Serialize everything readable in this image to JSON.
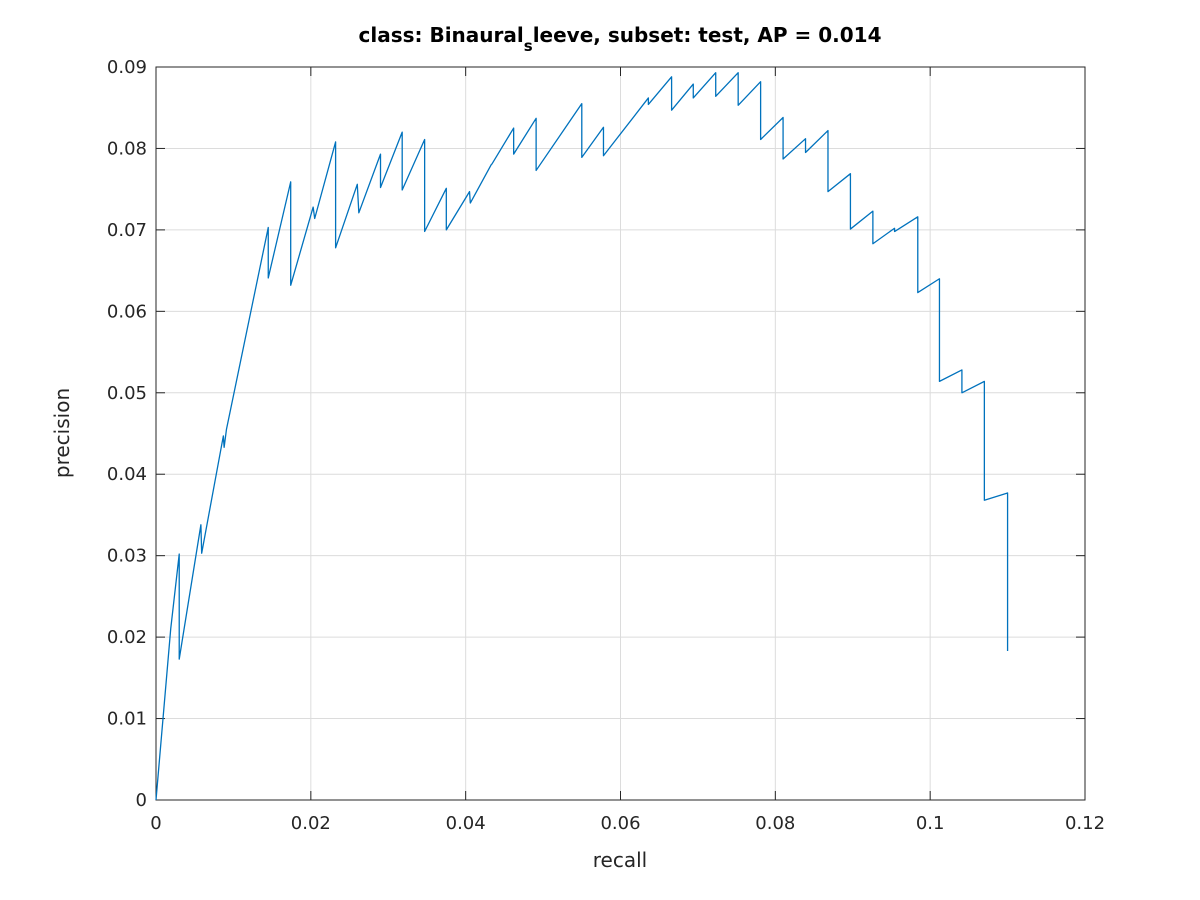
{
  "chart_data": {
    "type": "line",
    "title": {
      "prefix": "class: Binaural",
      "subscript": "s",
      "suffix": "leeve, subset: test, AP = 0.014"
    },
    "xlabel": "recall",
    "ylabel": "precision",
    "xlim": [
      0,
      0.12
    ],
    "ylim": [
      0,
      0.09
    ],
    "xticks": [
      0,
      0.02,
      0.04,
      0.06,
      0.08,
      0.1,
      0.12
    ],
    "xtick_labels": [
      "0",
      "0.02",
      "0.04",
      "0.06",
      "0.08",
      "0.1",
      "0.12"
    ],
    "yticks": [
      0,
      0.01,
      0.02,
      0.03,
      0.04,
      0.05,
      0.06,
      0.07,
      0.08,
      0.09
    ],
    "ytick_labels": [
      "0",
      "0.01",
      "0.02",
      "0.03",
      "0.04",
      "0.05",
      "0.06",
      "0.07",
      "0.08",
      "0.09"
    ],
    "grid": true,
    "color": "#0072bd",
    "series": [
      {
        "x": [
          0,
          0.0019,
          0.003,
          0.003,
          0.0058,
          0.0059,
          0.0087,
          0.0088,
          0.0091,
          0.0145,
          0.0145,
          0.0174,
          0.0174,
          0.0203,
          0.0205,
          0.0232,
          0.0232,
          0.026,
          0.0262,
          0.029,
          0.029,
          0.0318,
          0.0318,
          0.0347,
          0.0347,
          0.0375,
          0.0375,
          0.0405,
          0.0406,
          0.0433,
          0.0434,
          0.0462,
          0.0462,
          0.0491,
          0.0491,
          0.055,
          0.055,
          0.0578,
          0.0578,
          0.0636,
          0.0636,
          0.0666,
          0.0666,
          0.0694,
          0.0694,
          0.0723,
          0.0723,
          0.0752,
          0.0752,
          0.0781,
          0.0781,
          0.081,
          0.081,
          0.0839,
          0.0839,
          0.0868,
          0.0868,
          0.0897,
          0.0897,
          0.0926,
          0.0926,
          0.0954,
          0.0954,
          0.0984,
          0.0984,
          0.1012,
          0.1012,
          0.1041,
          0.1041,
          0.107,
          0.107,
          0.11,
          0.11
        ],
        "y": [
          0,
          0.021,
          0.0302,
          0.0173,
          0.0338,
          0.0303,
          0.0447,
          0.0433,
          0.0455,
          0.0703,
          0.0641,
          0.0759,
          0.0632,
          0.0728,
          0.0714,
          0.0808,
          0.0678,
          0.0756,
          0.0721,
          0.0793,
          0.0752,
          0.082,
          0.0749,
          0.0811,
          0.0698,
          0.0751,
          0.07,
          0.0747,
          0.0733,
          0.078,
          0.0781,
          0.0825,
          0.0793,
          0.0837,
          0.0773,
          0.0855,
          0.0789,
          0.0826,
          0.0791,
          0.0862,
          0.0854,
          0.0888,
          0.0847,
          0.0879,
          0.0862,
          0.0893,
          0.0864,
          0.0893,
          0.0853,
          0.0882,
          0.0811,
          0.0838,
          0.0787,
          0.0812,
          0.0795,
          0.0822,
          0.0747,
          0.0769,
          0.0701,
          0.0723,
          0.0683,
          0.0702,
          0.0698,
          0.0716,
          0.0623,
          0.064,
          0.0514,
          0.0528,
          0.05,
          0.0514,
          0.0368,
          0.0377,
          0.0183
        ]
      }
    ]
  }
}
